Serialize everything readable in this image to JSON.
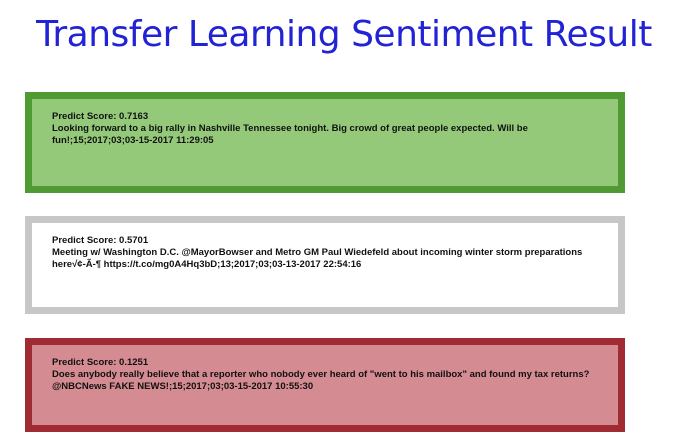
{
  "title": "Transfer Learning Sentiment Result",
  "colors": {
    "title": "#2323d6",
    "positive_border": "#4f9a31",
    "positive_fill": "#94c97a",
    "neutral_border": "#c7c7c7",
    "neutral_fill": "#ffffff",
    "negative_border": "#a02b33",
    "negative_fill": "#d48b91"
  },
  "results": [
    {
      "score_label": "Predict Score: 0.7163",
      "text": "Looking forward to a big rally in Nashville Tennessee tonight. Big crowd of great people expected. Will be fun!;15;2017;03;03-15-2017 11:29:05"
    },
    {
      "score_label": "Predict Score: 0.5701",
      "text": "Meeting w/ Washington D.C. @MayorBowser and Metro GM Paul Wiedefeld about incoming winter storm preparations here√¢-Ã-¶ https://t.co/mg0A4Hq3bD;13;2017;03;03-13-2017 22:54:16"
    },
    {
      "score_label": "Predict Score: 0.1251",
      "text": "Does anybody really believe that a reporter who nobody ever heard of \"went to his mailbox\" and found my tax returns? @NBCNews  FAKE NEWS!;15;2017;03;03-15-2017 10:55:30"
    }
  ]
}
